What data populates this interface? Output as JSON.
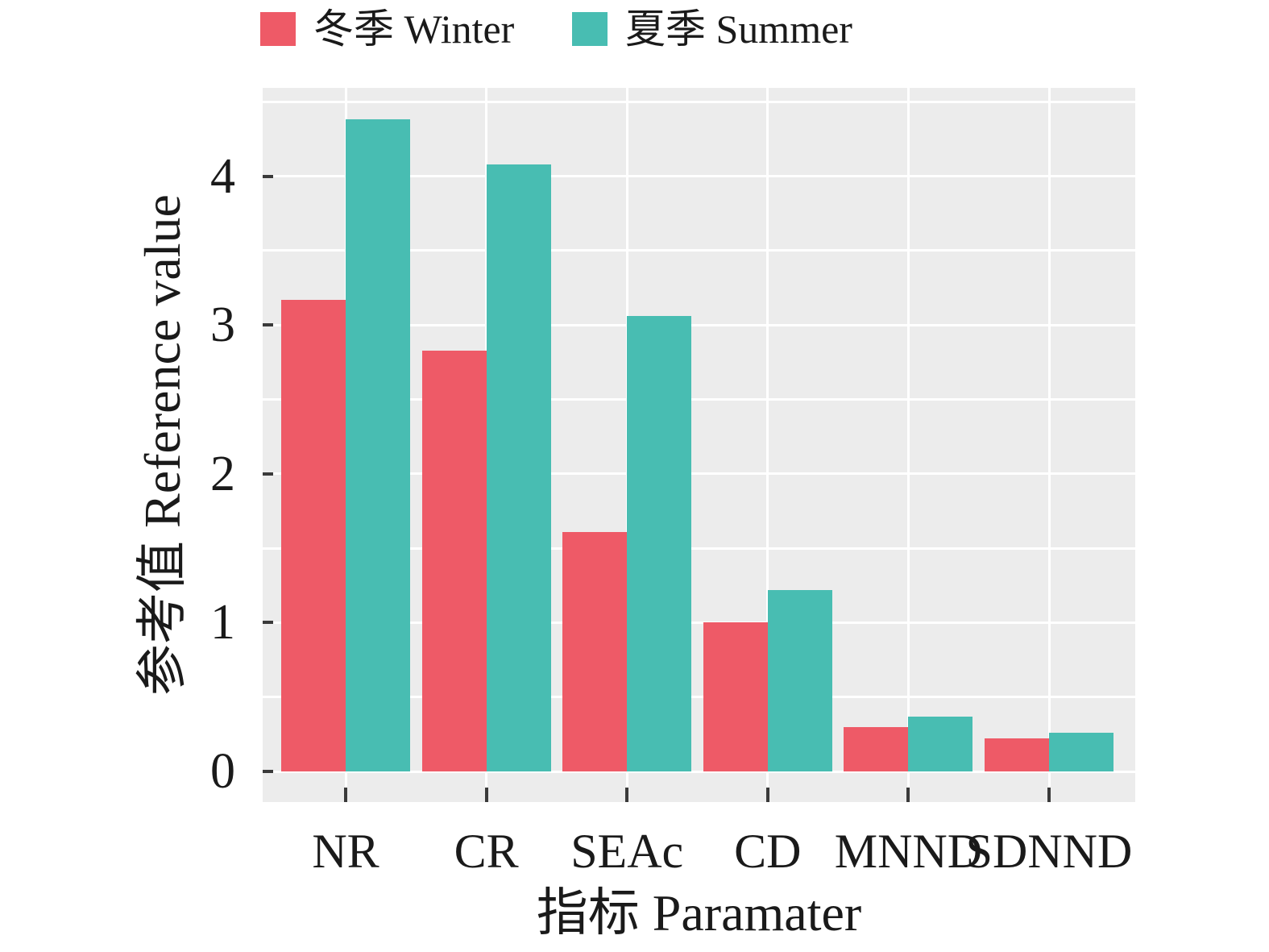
{
  "legend": {
    "items": [
      {
        "label": "冬季 Winter",
        "color": "#ee5a67"
      },
      {
        "label": "夏季 Summer",
        "color": "#48bdb2"
      }
    ]
  },
  "axes": {
    "x_title": "指标 Paramater",
    "y_title": "参考值 Reference value",
    "y_tick_labels": [
      "0",
      "1",
      "2",
      "3",
      "4"
    ]
  },
  "colors": {
    "winter": "#ee5a67",
    "summer": "#48bdb2",
    "panel_background": "#ececec",
    "gridline": "#ffffff",
    "tick_mark": "#3a3a3a",
    "text": "#1a1a1a"
  },
  "chart_data": {
    "type": "bar",
    "title": "",
    "xlabel": "指标 Paramater",
    "ylabel": "参考值 Reference value",
    "categories": [
      "NR",
      "CR",
      "SEAc",
      "CD",
      "MNND",
      "SDNND"
    ],
    "series": [
      {
        "name": "冬季 Winter",
        "color": "#ee5a67",
        "values": [
          3.17,
          2.83,
          1.61,
          1.0,
          0.3,
          0.22
        ]
      },
      {
        "name": "夏季 Summer",
        "color": "#48bdb2",
        "values": [
          4.38,
          4.08,
          3.06,
          1.22,
          0.37,
          0.26
        ]
      }
    ],
    "ylim": [
      0,
      4.59
    ],
    "y_major_ticks": [
      0,
      1,
      2,
      3,
      4
    ],
    "y_minor_step": 0.5,
    "grid": "on",
    "legend_position": "top"
  }
}
